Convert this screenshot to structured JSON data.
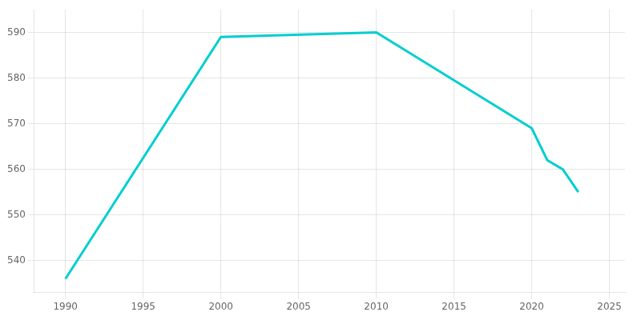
{
  "chart_data": {
    "type": "line",
    "x": [
      1990,
      2000,
      2010,
      2020,
      2021,
      2022,
      2023
    ],
    "values": [
      536,
      589,
      590,
      569,
      562,
      560,
      555
    ],
    "color": "#00CED1",
    "xlim": [
      1988,
      2026
    ],
    "ylim": [
      533,
      595
    ],
    "xticks": [
      1990,
      1995,
      2000,
      2005,
      2010,
      2015,
      2020,
      2025
    ],
    "yticks": [
      540,
      550,
      560,
      570,
      580,
      590
    ],
    "grid": true
  }
}
